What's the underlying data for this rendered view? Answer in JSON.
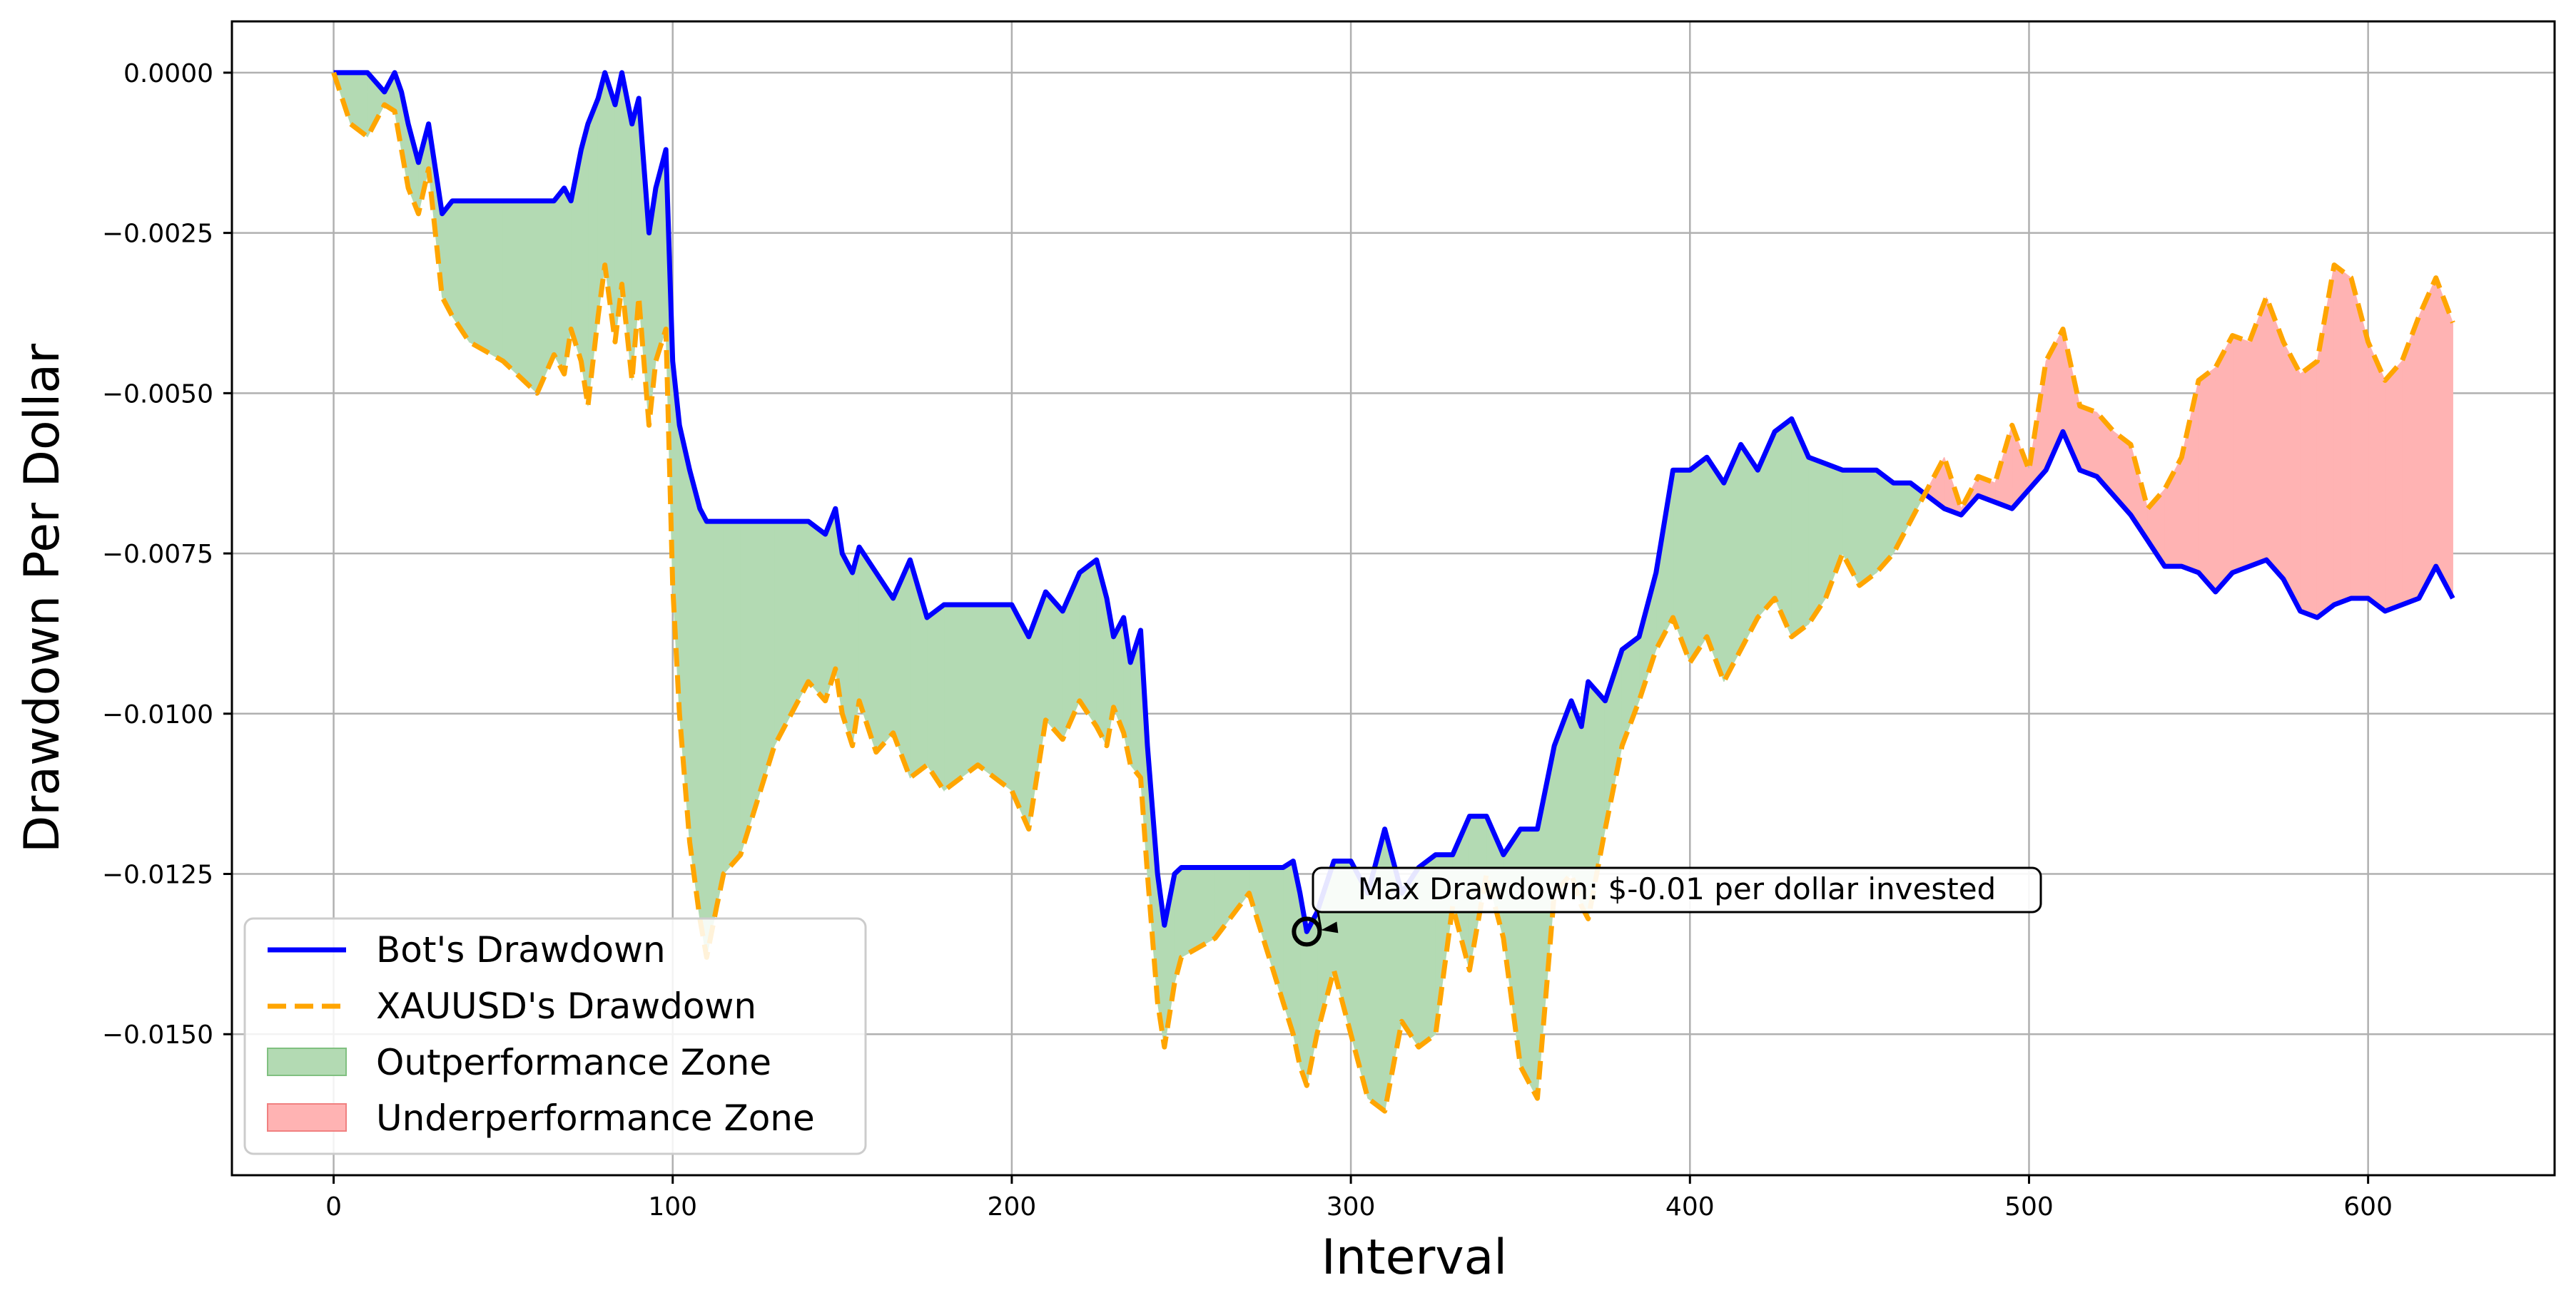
{
  "chart_data": {
    "type": "line",
    "xlabel": "Interval",
    "ylabel": "Drawdown Per Dollar",
    "xlim": [
      -30,
      655
    ],
    "ylim": [
      -0.0172,
      0.0008
    ],
    "x_ticks": [
      0,
      100,
      200,
      300,
      400,
      500,
      600
    ],
    "x_tick_labels": [
      "0",
      "100",
      "200",
      "300",
      "400",
      "500",
      "600"
    ],
    "y_ticks": [
      0.0,
      -0.0025,
      -0.005,
      -0.0075,
      -0.01,
      -0.0125,
      -0.015
    ],
    "y_tick_labels": [
      "0.0000",
      "−0.0025",
      "−0.0050",
      "−0.0075",
      "−0.0100",
      "−0.0125",
      "−0.0150"
    ],
    "grid": true,
    "legend_position": "lower-left",
    "legend": [
      "Bot's Drawdown",
      "XAUUSD's Drawdown",
      "Outperformance Zone",
      "Underperformance Zone"
    ],
    "colors": {
      "bot": "#0000ff",
      "xauusd": "#ffa500",
      "outperformance": "#b3dab3",
      "underperformance": "#ffb3b3",
      "grid": "#b0b0b0"
    },
    "series": [
      {
        "name": "Bot's Drawdown",
        "style": "solid",
        "x": [
          0,
          5,
          10,
          15,
          18,
          20,
          22,
          25,
          28,
          30,
          32,
          35,
          40,
          50,
          60,
          65,
          68,
          70,
          73,
          75,
          78,
          80,
          83,
          85,
          88,
          90,
          93,
          95,
          98,
          100,
          102,
          105,
          108,
          110,
          113,
          115,
          120,
          130,
          140,
          145,
          148,
          150,
          153,
          155,
          160,
          165,
          170,
          175,
          180,
          190,
          200,
          205,
          210,
          215,
          220,
          225,
          228,
          230,
          233,
          235,
          238,
          240,
          243,
          245,
          248,
          250,
          260,
          270,
          280,
          283,
          285,
          287,
          290,
          295,
          300,
          305,
          310,
          315,
          320,
          325,
          330,
          335,
          340,
          345,
          350,
          355,
          360,
          365,
          368,
          370,
          375,
          380,
          385,
          390,
          395,
          400,
          405,
          410,
          415,
          420,
          425,
          430,
          435,
          440,
          445,
          450,
          455,
          460,
          465,
          470,
          475,
          480,
          485,
          490,
          495,
          500,
          505,
          510,
          515,
          520,
          525,
          530,
          535,
          540,
          545,
          550,
          555,
          560,
          565,
          570,
          575,
          580,
          585,
          590,
          595,
          600,
          605,
          610,
          615,
          620,
          625
        ],
        "y": [
          0.0,
          0.0,
          0.0,
          -0.0003,
          0.0,
          -0.0003,
          -0.0008,
          -0.0014,
          -0.0008,
          -0.0015,
          -0.0022,
          -0.002,
          -0.002,
          -0.002,
          -0.002,
          -0.002,
          -0.0018,
          -0.002,
          -0.0012,
          -0.0008,
          -0.0004,
          0.0,
          -0.0005,
          0.0,
          -0.0008,
          -0.0004,
          -0.0025,
          -0.0018,
          -0.0012,
          -0.0045,
          -0.0055,
          -0.0062,
          -0.0068,
          -0.007,
          -0.007,
          -0.007,
          -0.007,
          -0.007,
          -0.007,
          -0.0072,
          -0.0068,
          -0.0075,
          -0.0078,
          -0.0074,
          -0.0078,
          -0.0082,
          -0.0076,
          -0.0085,
          -0.0083,
          -0.0083,
          -0.0083,
          -0.0088,
          -0.0081,
          -0.0084,
          -0.0078,
          -0.0076,
          -0.0082,
          -0.0088,
          -0.0085,
          -0.0092,
          -0.0087,
          -0.0105,
          -0.0125,
          -0.0133,
          -0.0125,
          -0.0124,
          -0.0124,
          -0.0124,
          -0.0124,
          -0.0123,
          -0.0128,
          -0.0134,
          -0.0131,
          -0.0123,
          -0.0123,
          -0.0128,
          -0.0118,
          -0.0128,
          -0.0124,
          -0.0122,
          -0.0122,
          -0.0116,
          -0.0116,
          -0.0122,
          -0.0118,
          -0.0118,
          -0.0105,
          -0.0098,
          -0.0102,
          -0.0095,
          -0.0098,
          -0.009,
          -0.0088,
          -0.0078,
          -0.0062,
          -0.0062,
          -0.006,
          -0.0064,
          -0.0058,
          -0.0062,
          -0.0056,
          -0.0054,
          -0.006,
          -0.0061,
          -0.0062,
          -0.0062,
          -0.0062,
          -0.0064,
          -0.0064,
          -0.0066,
          -0.0068,
          -0.0069,
          -0.0066,
          -0.0067,
          -0.0068,
          -0.0065,
          -0.0062,
          -0.0056,
          -0.0062,
          -0.0063,
          -0.0066,
          -0.0069,
          -0.0073,
          -0.0077,
          -0.0077,
          -0.0078,
          -0.0081,
          -0.0078,
          -0.0077,
          -0.0076,
          -0.0079,
          -0.0084,
          -0.0085,
          -0.0083,
          -0.0082,
          -0.0082,
          -0.0084,
          -0.0083,
          -0.0082,
          -0.0077,
          -0.0082
        ]
      },
      {
        "name": "XAUUSD's Drawdown",
        "style": "dashed",
        "x": [
          0,
          5,
          10,
          15,
          18,
          20,
          22,
          25,
          28,
          30,
          32,
          35,
          40,
          50,
          60,
          65,
          68,
          70,
          73,
          75,
          78,
          80,
          83,
          85,
          88,
          90,
          93,
          95,
          98,
          100,
          102,
          105,
          108,
          110,
          113,
          115,
          120,
          130,
          140,
          145,
          148,
          150,
          153,
          155,
          160,
          165,
          170,
          175,
          180,
          190,
          200,
          205,
          210,
          215,
          220,
          225,
          228,
          230,
          233,
          235,
          238,
          240,
          243,
          245,
          248,
          250,
          260,
          270,
          280,
          283,
          285,
          287,
          290,
          295,
          300,
          305,
          310,
          315,
          320,
          325,
          330,
          335,
          340,
          345,
          350,
          355,
          360,
          365,
          368,
          370,
          375,
          380,
          385,
          390,
          395,
          400,
          405,
          410,
          415,
          420,
          425,
          430,
          435,
          440,
          445,
          450,
          455,
          460,
          465,
          470,
          475,
          480,
          485,
          490,
          495,
          500,
          505,
          510,
          515,
          520,
          525,
          530,
          535,
          540,
          545,
          550,
          555,
          560,
          565,
          570,
          575,
          580,
          585,
          590,
          595,
          600,
          605,
          610,
          615,
          620,
          625
        ],
        "y": [
          0.0,
          -0.0008,
          -0.001,
          -0.0005,
          -0.0006,
          -0.0012,
          -0.0018,
          -0.0022,
          -0.0015,
          -0.0025,
          -0.0035,
          -0.0038,
          -0.0042,
          -0.0045,
          -0.005,
          -0.0044,
          -0.0047,
          -0.004,
          -0.0045,
          -0.0052,
          -0.0038,
          -0.003,
          -0.0042,
          -0.0033,
          -0.0048,
          -0.0035,
          -0.0055,
          -0.0045,
          -0.004,
          -0.008,
          -0.01,
          -0.012,
          -0.0132,
          -0.0138,
          -0.013,
          -0.0125,
          -0.0122,
          -0.0105,
          -0.0095,
          -0.0098,
          -0.0093,
          -0.01,
          -0.0105,
          -0.0098,
          -0.0106,
          -0.0103,
          -0.011,
          -0.0108,
          -0.0112,
          -0.0108,
          -0.0112,
          -0.0118,
          -0.0101,
          -0.0104,
          -0.0098,
          -0.0102,
          -0.0105,
          -0.0099,
          -0.0103,
          -0.0108,
          -0.011,
          -0.0125,
          -0.0145,
          -0.0152,
          -0.0142,
          -0.0138,
          -0.0135,
          -0.0128,
          -0.0145,
          -0.015,
          -0.0155,
          -0.0158,
          -0.015,
          -0.014,
          -0.015,
          -0.016,
          -0.0162,
          -0.0148,
          -0.0152,
          -0.015,
          -0.013,
          -0.014,
          -0.0125,
          -0.0135,
          -0.0155,
          -0.016,
          -0.0128,
          -0.0125,
          -0.013,
          -0.0132,
          -0.0118,
          -0.0105,
          -0.0098,
          -0.009,
          -0.0085,
          -0.0092,
          -0.0088,
          -0.0095,
          -0.009,
          -0.0085,
          -0.0082,
          -0.0088,
          -0.0086,
          -0.0082,
          -0.0075,
          -0.008,
          -0.0078,
          -0.0075,
          -0.007,
          -0.0065,
          -0.006,
          -0.0068,
          -0.0063,
          -0.0064,
          -0.0055,
          -0.0062,
          -0.0045,
          -0.004,
          -0.0052,
          -0.0053,
          -0.0056,
          -0.0058,
          -0.0068,
          -0.0065,
          -0.006,
          -0.0048,
          -0.0046,
          -0.0041,
          -0.0042,
          -0.0035,
          -0.0042,
          -0.0047,
          -0.0045,
          -0.003,
          -0.0032,
          -0.0042,
          -0.0048,
          -0.0045,
          -0.0038,
          -0.0032,
          -0.0039
        ]
      }
    ],
    "annotation": {
      "text": "Max Drawdown: $-0.01 per dollar invested",
      "point": [
        287,
        -0.0134
      ]
    }
  }
}
